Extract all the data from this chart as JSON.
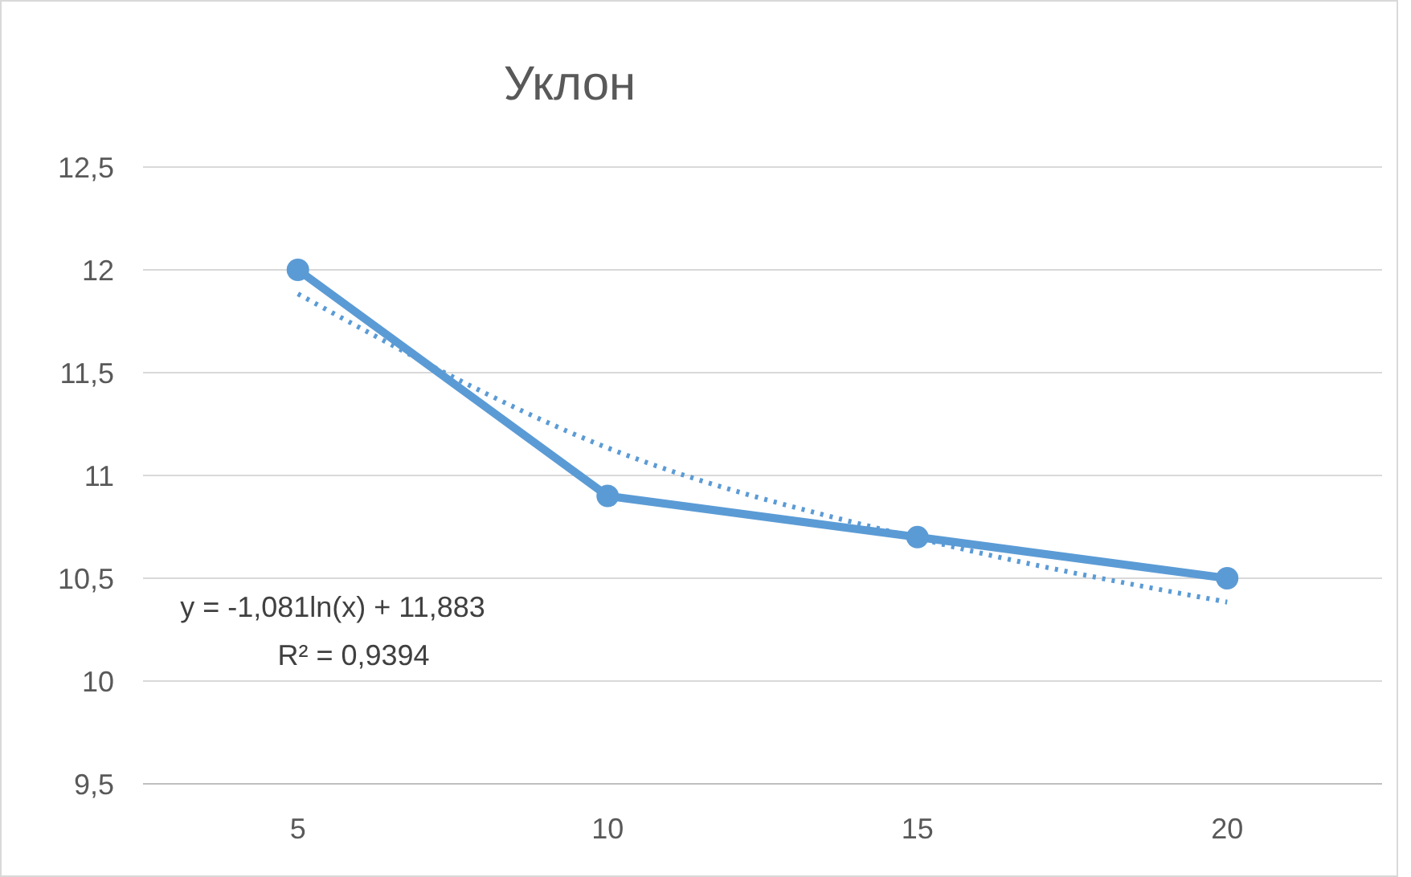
{
  "chart_data": {
    "type": "line",
    "title": "Уклон",
    "categories": [
      "5",
      "10",
      "15",
      "20"
    ],
    "series": [
      {
        "color": "#5b9bd5",
        "values": [
          12,
          10.9,
          10.7,
          10.5
        ],
        "marker": "circle",
        "line_style": "solid"
      },
      {
        "type": "line",
        "color": "#5b9bd5",
        "values": [
          11.883,
          11.134,
          10.695,
          10.384
        ],
        "marker": "none",
        "line_style": "dotted"
      }
    ],
    "ylim": [
      9.5,
      12.5
    ],
    "yticks": [
      {
        "value": 9.5,
        "label": "9,5"
      },
      10,
      {
        "value": 10.5,
        "label": "10,5"
      },
      11,
      {
        "value": 11.5,
        "label": "11,5"
      },
      12,
      {
        "value": 12.5,
        "label": "12,5"
      }
    ],
    "grid": "y",
    "annotations": [
      "y = -1,081ln(x) + 11,883",
      "R² = 0,9394"
    ]
  }
}
